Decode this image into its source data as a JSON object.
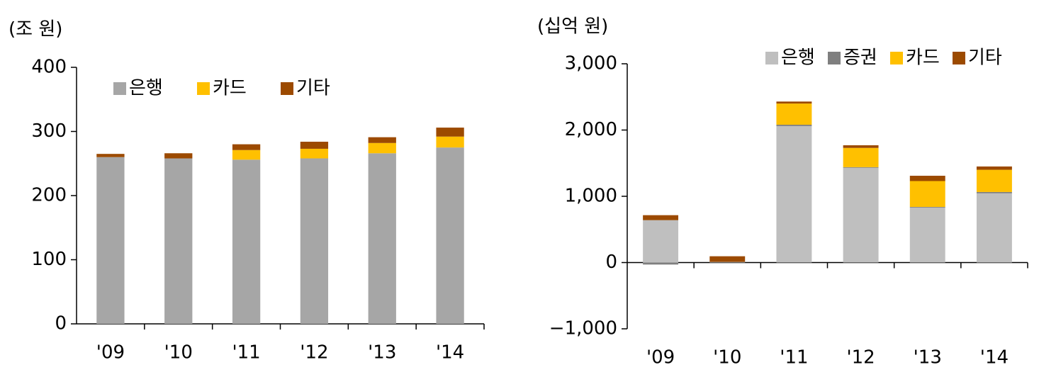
{
  "chart_data": [
    {
      "type": "stacked_bar",
      "y_label": "(조 원)",
      "legend": "upper left",
      "categories": [
        "'09",
        "'10",
        "'11",
        "'12",
        "'13",
        "'14"
      ],
      "series": [
        {
          "name": "은행",
          "color": "#a6a6a6",
          "values": [
            260,
            258,
            256,
            258,
            266,
            275
          ]
        },
        {
          "name": "카드",
          "color": "#ffc000",
          "values": [
            0,
            0,
            15,
            15,
            16,
            17
          ]
        },
        {
          "name": "기타",
          "color": "#9c4a00",
          "values": [
            5,
            8,
            9,
            11,
            9,
            14
          ]
        }
      ],
      "ylim": [
        0,
        400
      ],
      "yticks": [
        0,
        100,
        200,
        300,
        400
      ]
    },
    {
      "type": "stacked_bar",
      "y_label": "(십억 원)",
      "legend": "upper right",
      "categories": [
        "'09",
        "'10",
        "'11",
        "'12",
        "'13",
        "'14"
      ],
      "series": [
        {
          "name": "은행",
          "color": "#bfbfbf",
          "values": [
            640,
            10,
            2060,
            1430,
            830,
            1045
          ]
        },
        {
          "name": "증권",
          "color": "#7f7f7f",
          "values": [
            -30,
            0,
            20,
            10,
            10,
            20
          ]
        },
        {
          "name": "카드",
          "color": "#ffc000",
          "values": [
            0,
            0,
            320,
            290,
            390,
            335
          ]
        },
        {
          "name": "기타",
          "color": "#9c4a00",
          "values": [
            75,
            85,
            30,
            40,
            80,
            50
          ]
        }
      ],
      "ylim": [
        -1000,
        3000
      ],
      "yticks": [
        {
          "value": -1000,
          "label": "−1,000"
        },
        0,
        {
          "value": 1000,
          "label": "1,000"
        },
        {
          "value": 2000,
          "label": "2,000"
        },
        {
          "value": 3000,
          "label": "3,000"
        }
      ]
    }
  ]
}
